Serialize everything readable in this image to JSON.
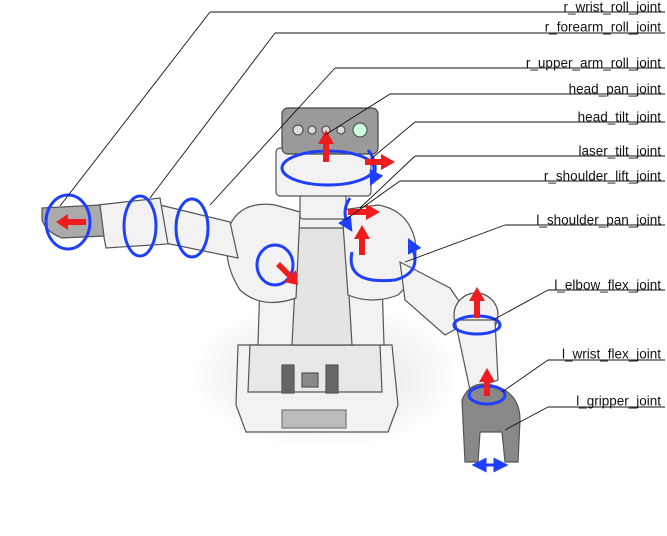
{
  "colors": {
    "rotation_arrow": "#1f3fff",
    "translation_arrow": "#ee1c1c",
    "leader_line": "#111111",
    "robot_outline": "#555555",
    "robot_fill": "#f2f2f2",
    "shadow": "#e6e6e6"
  },
  "joints": [
    {
      "id": "r_wrist_roll",
      "label": "r_wrist_roll_joint",
      "motion": "rotation"
    },
    {
      "id": "r_forearm_roll",
      "label": "r_forearm_roll_joint",
      "motion": "rotation"
    },
    {
      "id": "r_upper_arm_roll",
      "label": "r_upper_arm_roll_joint",
      "motion": "rotation"
    },
    {
      "id": "head_pan",
      "label": "head_pan_joint",
      "motion": "rotation"
    },
    {
      "id": "head_tilt",
      "label": "head_tilt_joint",
      "motion": "rotation"
    },
    {
      "id": "laser_tilt",
      "label": "laser_tilt_joint",
      "motion": "rotation"
    },
    {
      "id": "r_shoulder_lift",
      "label": "r_shoulder_lift_joint",
      "motion": "rotation"
    },
    {
      "id": "l_shoulder_pan",
      "label": "l_shoulder_pan_joint",
      "motion": "rotation"
    },
    {
      "id": "l_elbow_flex",
      "label": "l_elbow_flex_joint",
      "motion": "rotation"
    },
    {
      "id": "l_wrist_flex",
      "label": "l_wrist_flex_joint",
      "motion": "rotation"
    },
    {
      "id": "l_gripper",
      "label": "l_gripper_joint",
      "motion": "translation"
    }
  ]
}
